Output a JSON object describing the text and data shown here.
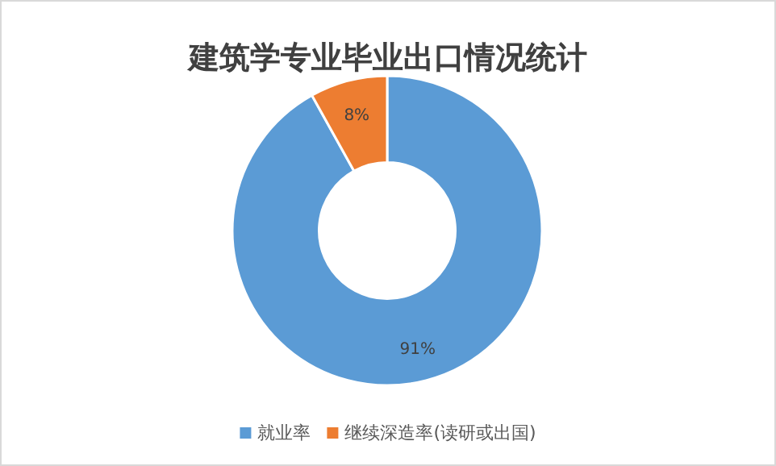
{
  "chart_data": {
    "type": "donut",
    "title": "建筑学专业毕业出口情况统计",
    "categories": [
      "就业率",
      "继续深造率(读研或出国)"
    ],
    "values": [
      91,
      8
    ],
    "value_labels": [
      "91%",
      "8%"
    ],
    "colors": [
      "#5b9bd5",
      "#ed7d31"
    ],
    "legend": "bottom"
  }
}
